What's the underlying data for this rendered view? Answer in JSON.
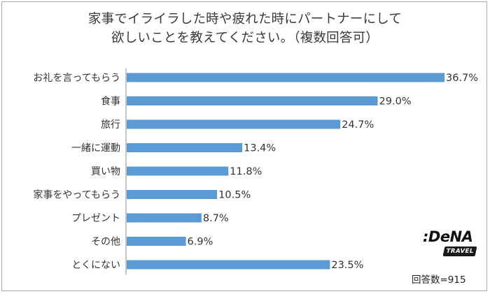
{
  "chart_data": {
    "type": "bar",
    "orientation": "horizontal",
    "title_line1": "家事でイライラした時や疲れた時にパートナーにして",
    "title_line2": "欲しいことを教えてください。（複数回答可）",
    "categories": [
      "お礼を言ってもらう",
      "食事",
      "旅行",
      "一緒に運動",
      "買い物",
      "家事をやってもらう",
      "プレゼント",
      "その他",
      "とくにない"
    ],
    "values": [
      36.7,
      29.0,
      24.7,
      13.4,
      11.8,
      10.5,
      8.7,
      6.9,
      23.5
    ],
    "value_labels": [
      "36.7%",
      "29.0%",
      "24.7%",
      "13.4%",
      "11.8%",
      "10.5%",
      "8.7%",
      "6.9%",
      "23.5%"
    ],
    "unit": "%",
    "xlim": [
      0,
      36.7
    ],
    "grid": false,
    "bar_color": "#5b9bd5"
  },
  "logo": {
    "text": ":DeNA",
    "sub": "TRAVEL"
  },
  "footer": {
    "count": "回答数=915"
  }
}
